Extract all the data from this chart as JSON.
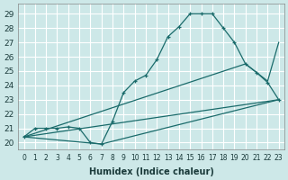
{
  "xlabel": "Humidex (Indice chaleur)",
  "background_color": "#cde8e8",
  "grid_color": "#ffffff",
  "line_color": "#1a6b6b",
  "xlim": [
    -0.5,
    23.5
  ],
  "ylim": [
    19.5,
    29.7
  ],
  "xticks": [
    0,
    1,
    2,
    3,
    4,
    5,
    6,
    7,
    8,
    9,
    10,
    11,
    12,
    13,
    14,
    15,
    16,
    17,
    18,
    19,
    20,
    21,
    22,
    23
  ],
  "yticks": [
    20,
    21,
    22,
    23,
    24,
    25,
    26,
    27,
    28,
    29
  ],
  "curve1_x": [
    0,
    1,
    2,
    3,
    4,
    5,
    6,
    7,
    8,
    9,
    10,
    11,
    12,
    13,
    14,
    15,
    16,
    17,
    18,
    19,
    20,
    21,
    22,
    23
  ],
  "curve1_y": [
    20.4,
    21.0,
    21.0,
    21.0,
    21.1,
    21.0,
    20.0,
    19.9,
    21.5,
    23.5,
    24.3,
    24.7,
    25.8,
    27.4,
    28.1,
    29.0,
    29.0,
    29.0,
    28.0,
    27.0,
    25.5,
    24.9,
    24.2,
    23.0
  ],
  "line2_x": [
    0,
    23
  ],
  "line2_y": [
    20.4,
    23.0
  ],
  "line3_x": [
    0,
    7,
    23
  ],
  "line3_y": [
    20.4,
    19.9,
    23.0
  ],
  "line4_x": [
    0,
    20,
    22,
    23
  ],
  "line4_y": [
    20.4,
    25.5,
    24.3,
    27.0
  ]
}
